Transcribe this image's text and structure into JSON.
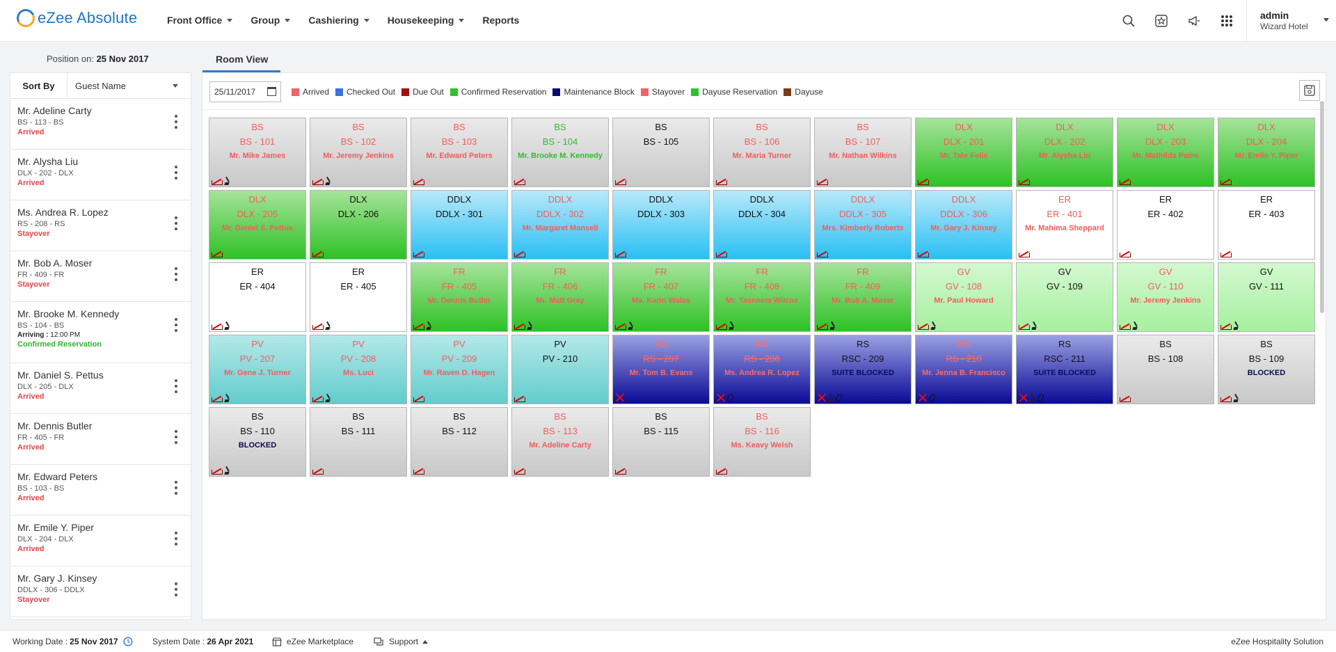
{
  "app": {
    "title": "eZee Absolute"
  },
  "nav": [
    {
      "label": "Front Office",
      "caret": true
    },
    {
      "label": "Group",
      "caret": true
    },
    {
      "label": "Cashiering",
      "caret": true
    },
    {
      "label": "Housekeeping",
      "caret": true
    },
    {
      "label": "Reports",
      "caret": false
    }
  ],
  "top_icons": [
    "search-icon",
    "star-badge-icon",
    "megaphone-icon",
    "apps-grid-icon"
  ],
  "user": {
    "name": "admin",
    "hotel": "Wizard Hotel"
  },
  "position": {
    "label": "Position on:",
    "date": "25 Nov 2017"
  },
  "sort": {
    "label": "Sort By",
    "value": "Guest Name"
  },
  "guests": [
    {
      "name": "Mr. Adeline Carty",
      "room": "BS - 113 - BS",
      "status": "Arrived",
      "color": "#e0474c"
    },
    {
      "name": "Mr. Alysha Liu",
      "room": "DLX - 202 - DLX",
      "status": "Arrived",
      "color": "#e0474c"
    },
    {
      "name": "Ms. Andrea R. Lopez",
      "room": "RS - 208 - RS",
      "status": "Stayover",
      "color": "#e0474c"
    },
    {
      "name": "Mr. Bob A. Moser",
      "room": "FR - 409 - FR",
      "status": "Stayover",
      "color": "#e0474c"
    },
    {
      "name": "Mr. Brooke M. Kennedy",
      "room": "BS - 104 - BS",
      "arriving_label": "Arriving :",
      "arriving_time": "12:00 PM",
      "status": "Confirmed Reservation",
      "color": "#2fb52f"
    },
    {
      "name": "Mr. Daniel S. Pettus",
      "room": "DLX - 205 - DLX",
      "status": "Arrived",
      "color": "#e0474c"
    },
    {
      "name": "Mr. Dennis Butler",
      "room": "FR - 405 - FR",
      "status": "Arrived",
      "color": "#e0474c"
    },
    {
      "name": "Mr. Edward Peters",
      "room": "BS - 103 - BS",
      "status": "Arrived",
      "color": "#e0474c"
    },
    {
      "name": "Mr. Emile Y. Piper",
      "room": "DLX - 204 - DLX",
      "status": "Arrived",
      "color": "#e0474c"
    },
    {
      "name": "Mr. Gary J. Kinsey",
      "room": "DDLX - 306 - DDLX",
      "status": "Stayover",
      "color": "#e0474c"
    }
  ],
  "tab": {
    "label": "Room View"
  },
  "date_input": {
    "value": "25/11/2017"
  },
  "legend": [
    {
      "label": "Arrived",
      "color": "#f0626a"
    },
    {
      "label": "Checked Out",
      "color": "#3c6fe0"
    },
    {
      "label": "Due Out",
      "color": "#a11010"
    },
    {
      "label": "Confirmed Reservation",
      "color": "#2ec22e"
    },
    {
      "label": "Maintenance Block",
      "color": "#0b0b6e"
    },
    {
      "label": "Stayover",
      "color": "#f0626a"
    },
    {
      "label": "Dayuse Reservation",
      "color": "#2ec22e"
    },
    {
      "label": "Dayuse",
      "color": "#7a3d12"
    }
  ],
  "rooms": [
    {
      "type": "BS",
      "no": "BS - 101",
      "guest": "Mr. Mike James",
      "bg": "gray",
      "tc": "red",
      "icons": [
        "bed",
        "broom"
      ]
    },
    {
      "type": "BS",
      "no": "BS - 102",
      "guest": "Mr. Jeremy Jenkins",
      "bg": "gray",
      "tc": "red",
      "icons": [
        "bed",
        "broom"
      ]
    },
    {
      "type": "BS",
      "no": "BS - 103",
      "guest": "Mr. Edward Peters",
      "bg": "gray",
      "tc": "red",
      "icons": [
        "bed"
      ]
    },
    {
      "type": "BS",
      "no": "BS - 104",
      "guest": "Mr. Brooke M. Kennedy",
      "bg": "gray",
      "tc": "green",
      "icons": [
        "bed"
      ]
    },
    {
      "type": "BS",
      "no": "BS - 105",
      "guest": "",
      "bg": "gray",
      "tc": "black",
      "icons": [
        "bed"
      ]
    },
    {
      "type": "BS",
      "no": "BS - 106",
      "guest": "Mr. Maria Turner",
      "bg": "gray",
      "tc": "red",
      "icons": [
        "bed"
      ]
    },
    {
      "type": "BS",
      "no": "BS - 107",
      "guest": "Mr. Nathan Wilkins",
      "bg": "gray",
      "tc": "red",
      "icons": [
        "bed"
      ]
    },
    {
      "type": "DLX",
      "no": "DLX - 201",
      "guest": "Mr. Tate Felix",
      "bg": "green",
      "tc": "red",
      "icons": [
        "bed"
      ]
    },
    {
      "type": "DLX",
      "no": "DLX - 202",
      "guest": "Mr. Alysha Liu",
      "bg": "green",
      "tc": "red",
      "icons": [
        "bed"
      ]
    },
    {
      "type": "DLX",
      "no": "DLX - 203",
      "guest": "Mr. Mathilda Paine",
      "bg": "green",
      "tc": "red",
      "icons": [
        "bed"
      ]
    },
    {
      "type": "DLX",
      "no": "DLX - 204",
      "guest": "Mr. Emile Y. Piper",
      "bg": "green",
      "tc": "red",
      "icons": [
        "bed"
      ]
    },
    {
      "type": "DLX",
      "no": "DLX - 205",
      "guest": "Mr. Daniel S. Pettus",
      "bg": "green",
      "tc": "red",
      "icons": [
        "bed"
      ]
    },
    {
      "type": "DLX",
      "no": "DLX - 206",
      "guest": "",
      "bg": "green",
      "tc": "black",
      "icons": [
        "bed"
      ]
    },
    {
      "type": "DDLX",
      "no": "DDLX - 301",
      "guest": "",
      "bg": "blue",
      "tc": "black",
      "icons": [
        "bed"
      ]
    },
    {
      "type": "DDLX",
      "no": "DDLX - 302",
      "guest": "Mr. Margaret Mansell",
      "bg": "blue",
      "tc": "red",
      "icons": [
        "bed"
      ]
    },
    {
      "type": "DDLX",
      "no": "DDLX - 303",
      "guest": "",
      "bg": "blue",
      "tc": "black",
      "icons": [
        "bed"
      ]
    },
    {
      "type": "DDLX",
      "no": "DDLX - 304",
      "guest": "",
      "bg": "blue",
      "tc": "black",
      "icons": [
        "bed"
      ]
    },
    {
      "type": "DDLX",
      "no": "DDLX - 305",
      "guest": "Mrs. Kimberly Roberts",
      "bg": "blue",
      "tc": "red",
      "icons": [
        "bed"
      ]
    },
    {
      "type": "DDLX",
      "no": "DDLX - 306",
      "guest": "Mr. Gary J. Kinsey",
      "bg": "blue",
      "tc": "red",
      "icons": [
        "bed"
      ]
    },
    {
      "type": "ER",
      "no": "ER - 401",
      "guest": "Mr. Mahima Sheppard",
      "bg": "white",
      "tc": "red",
      "icons": [
        "bed"
      ]
    },
    {
      "type": "ER",
      "no": "ER - 402",
      "guest": "",
      "bg": "white",
      "tc": "black",
      "icons": [
        "bed"
      ]
    },
    {
      "type": "ER",
      "no": "ER - 403",
      "guest": "",
      "bg": "white",
      "tc": "black",
      "icons": [
        "bed"
      ]
    },
    {
      "type": "ER",
      "no": "ER - 404",
      "guest": "",
      "bg": "white",
      "tc": "black",
      "icons": [
        "bed",
        "broom"
      ]
    },
    {
      "type": "ER",
      "no": "ER - 405",
      "guest": "",
      "bg": "white",
      "tc": "black",
      "icons": [
        "bed",
        "broom"
      ]
    },
    {
      "type": "FR",
      "no": "FR - 405",
      "guest": "Mr. Dennis Butler",
      "bg": "green",
      "tc": "red",
      "icons": [
        "bed",
        "broom"
      ]
    },
    {
      "type": "FR",
      "no": "FR - 406",
      "guest": "Mr. Matt Gray",
      "bg": "green",
      "tc": "red",
      "icons": [
        "bed",
        "broom"
      ]
    },
    {
      "type": "FR",
      "no": "FR - 407",
      "guest": "Ms. Karin Wales",
      "bg": "green",
      "tc": "red",
      "icons": [
        "bed",
        "broom"
      ]
    },
    {
      "type": "FR",
      "no": "FR - 408",
      "guest": "Mr. Tasneem Wilcox",
      "bg": "green",
      "tc": "red",
      "icons": [
        "bed",
        "broom"
      ]
    },
    {
      "type": "FR",
      "no": "FR - 409",
      "guest": "Mr. Bob A. Moser",
      "bg": "green",
      "tc": "red",
      "icons": [
        "bed",
        "broom"
      ]
    },
    {
      "type": "GV",
      "no": "GV - 108",
      "guest": "Mr. Paul Howard",
      "bg": "lightgreen",
      "tc": "red",
      "icons": [
        "bed",
        "broom"
      ]
    },
    {
      "type": "GV",
      "no": "GV - 109",
      "guest": "",
      "bg": "lightgreen",
      "tc": "black",
      "icons": [
        "bed",
        "broom"
      ]
    },
    {
      "type": "GV",
      "no": "GV - 110",
      "guest": "Mr. Jeremy Jenkins",
      "bg": "lightgreen",
      "tc": "red",
      "icons": [
        "bed",
        "broom"
      ]
    },
    {
      "type": "GV",
      "no": "GV - 111",
      "guest": "",
      "bg": "lightgreen",
      "tc": "black",
      "icons": [
        "bed",
        "broom"
      ]
    },
    {
      "type": "PV",
      "no": "PV - 207",
      "guest": "Mr. Gene J. Turner",
      "bg": "teal",
      "tc": "red",
      "icons": [
        "bed",
        "broom"
      ]
    },
    {
      "type": "PV",
      "no": "PV - 208",
      "guest": "Ms. Luci",
      "bg": "teal",
      "tc": "red",
      "icons": [
        "bed",
        "broom"
      ]
    },
    {
      "type": "PV",
      "no": "PV - 209",
      "guest": "Mr. Raven D. Hagen",
      "bg": "teal",
      "tc": "red",
      "icons": [
        "bed"
      ]
    },
    {
      "type": "PV",
      "no": "PV - 210",
      "guest": "",
      "bg": "teal",
      "tc": "black",
      "icons": [
        "bed"
      ]
    },
    {
      "type": "RS",
      "no": "RS - 207",
      "guest": "Mr. Tom B. Evans",
      "bg": "navy",
      "tc": "redstrike",
      "icons": [
        "x"
      ]
    },
    {
      "type": "RS",
      "no": "RS - 208",
      "guest": "Ms. Andrea R. Lopez",
      "bg": "navy",
      "tc": "redstrike",
      "icons": [
        "x",
        "clip"
      ]
    },
    {
      "type": "RS",
      "no": "RSC - 209",
      "guest": "SUITE BLOCKED",
      "bg": "navy",
      "tc": "navy",
      "icons": [
        "x",
        "broom",
        "clip"
      ]
    },
    {
      "type": "RS",
      "no": "RS - 210",
      "guest": "Mr. Jenna B. Francisco",
      "bg": "navy",
      "tc": "redstrike",
      "icons": [
        "x",
        "clip"
      ]
    },
    {
      "type": "RS",
      "no": "RSC - 211",
      "guest": "SUITE BLOCKED",
      "bg": "navy",
      "tc": "navy",
      "icons": [
        "x",
        "broom",
        "clip"
      ]
    },
    {
      "type": "BS",
      "no": "BS - 108",
      "guest": "",
      "bg": "gray",
      "tc": "black",
      "icons": [
        "bed"
      ]
    },
    {
      "type": "BS",
      "no": "BS - 109",
      "guest": "BLOCKED",
      "bg": "gray",
      "tc": "navy",
      "icons": [
        "bed",
        "broom"
      ]
    },
    {
      "type": "BS",
      "no": "BS - 110",
      "guest": "BLOCKED",
      "bg": "gray",
      "tc": "navy",
      "icons": [
        "bed",
        "broom"
      ]
    },
    {
      "type": "BS",
      "no": "BS - 111",
      "guest": "",
      "bg": "gray",
      "tc": "black",
      "icons": [
        "bed"
      ]
    },
    {
      "type": "BS",
      "no": "BS - 112",
      "guest": "",
      "bg": "gray",
      "tc": "black",
      "icons": [
        "bed"
      ]
    },
    {
      "type": "BS",
      "no": "BS - 113",
      "guest": "Mr. Adeline Carty",
      "bg": "gray",
      "tc": "red",
      "icons": [
        "bed"
      ]
    },
    {
      "type": "BS",
      "no": "BS - 115",
      "guest": "",
      "bg": "gray",
      "tc": "black",
      "icons": [
        "bed"
      ]
    },
    {
      "type": "BS",
      "no": "BS - 116",
      "guest": "Ms. Keavy Welsh",
      "bg": "gray",
      "tc": "red",
      "icons": [
        "bed"
      ]
    }
  ],
  "footer": {
    "working_label": "Working Date :",
    "working_date": "25 Nov 2017",
    "system_label": "System Date :",
    "system_date": "26 Apr 2021",
    "marketplace": "eZee Marketplace",
    "support": "Support",
    "company": "eZee Hospitality Solution"
  }
}
